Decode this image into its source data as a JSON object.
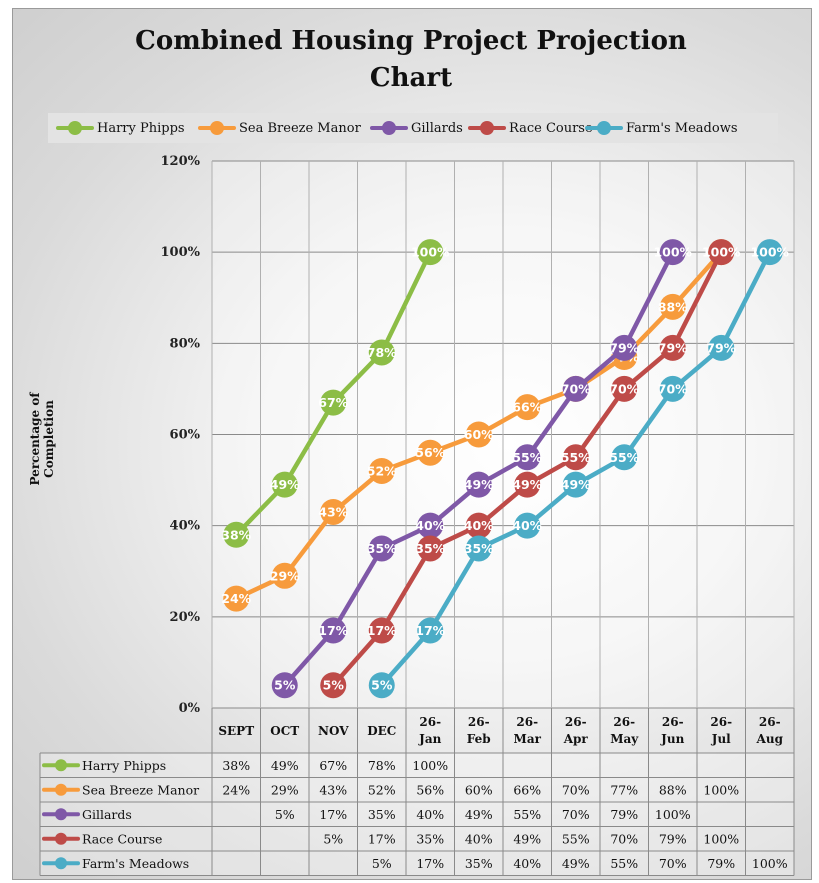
{
  "chart_data": {
    "type": "line",
    "title": [
      "Combined Housing Project Projection",
      "Chart"
    ],
    "ylabel": "Percentage of Completion",
    "xlabel": "",
    "ylim": [
      0,
      120
    ],
    "yticks": [
      "0%",
      "20%",
      "40%",
      "60%",
      "80%",
      "100%",
      "120%"
    ],
    "categories": [
      [
        "SEPT"
      ],
      [
        "OCT"
      ],
      [
        "NOV"
      ],
      [
        "DEC"
      ],
      [
        "26-",
        "Jan"
      ],
      [
        "26-",
        "Feb"
      ],
      [
        "26-",
        "Mar"
      ],
      [
        "26-",
        "Apr"
      ],
      [
        "26-",
        "May"
      ],
      [
        "26-",
        "Jun"
      ],
      [
        "26-",
        "Jul"
      ],
      [
        "26-",
        "Aug"
      ]
    ],
    "legend_position": "top",
    "series": [
      {
        "name": "Harry Phipps",
        "color": "#8cbd46",
        "values": [
          38,
          49,
          67,
          78,
          100,
          null,
          null,
          null,
          null,
          null,
          null,
          null
        ],
        "labels": [
          "38%",
          "49%",
          "67%",
          "78%",
          "100%",
          "",
          "",
          "",
          "",
          "",
          "",
          ""
        ]
      },
      {
        "name": "Sea Breeze Manor",
        "color": "#f79b3c",
        "values": [
          24,
          29,
          43,
          52,
          56,
          60,
          66,
          70,
          77,
          88,
          100,
          null
        ],
        "labels": [
          "24%",
          "29%",
          "43%",
          "52%",
          "56%",
          "60%",
          "66%",
          "70%",
          "77%",
          "88%",
          "100%",
          ""
        ]
      },
      {
        "name": "Gillards",
        "color": "#7f58a7",
        "values": [
          null,
          5,
          17,
          35,
          40,
          49,
          55,
          70,
          79,
          100,
          null,
          null
        ],
        "labels": [
          "",
          "5%",
          "17%",
          "35%",
          "40%",
          "49%",
          "55%",
          "70%",
          "79%",
          "100%",
          "",
          ""
        ]
      },
      {
        "name": "Race Course",
        "color": "#be4b48",
        "values": [
          null,
          null,
          5,
          17,
          35,
          40,
          49,
          55,
          70,
          79,
          100,
          null
        ],
        "labels": [
          "",
          "",
          "5%",
          "17%",
          "35%",
          "40%",
          "49%",
          "55%",
          "70%",
          "79%",
          "100%",
          ""
        ]
      },
      {
        "name": "Farm's Meadows",
        "color": "#4bacc6",
        "values": [
          null,
          null,
          null,
          5,
          17,
          35,
          40,
          49,
          55,
          70,
          79,
          100
        ],
        "labels": [
          "",
          "",
          "",
          "5%",
          "17%",
          "35%",
          "40%",
          "49%",
          "55%",
          "70%",
          "79%",
          "100%"
        ]
      }
    ]
  }
}
